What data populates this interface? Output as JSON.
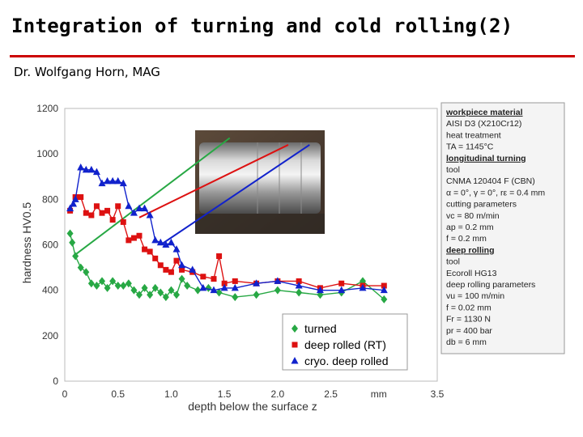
{
  "slide": {
    "title": "Integration of turning and cold rolling(2)",
    "subtitle": "Dr. Wolfgang Horn, MAG"
  },
  "colors": {
    "turned": "#27a844",
    "deep_rolled_rt": "#dd1111",
    "cryo_deep_rolled": "#1122cc",
    "title_rule": "#cc0000"
  },
  "chart_data": {
    "type": "line",
    "xlabel": "depth below the surface z",
    "ylabel": "hardness HV0.5",
    "x_unit_tick": "mm",
    "xlim": [
      0,
      3.5
    ],
    "ylim": [
      0,
      1200
    ],
    "x_ticks": [
      "0",
      "0.5",
      "1.0",
      "1.5",
      "2.0",
      "2.5",
      "mm",
      "3.5"
    ],
    "x_tick_values": [
      0,
      0.5,
      1.0,
      1.5,
      2.0,
      2.5,
      2.95,
      3.5
    ],
    "y_ticks": [
      "0",
      "200",
      "400",
      "600",
      "800",
      "1000",
      "1200"
    ],
    "y_tick_values": [
      0,
      200,
      400,
      600,
      800,
      1000,
      1200
    ],
    "grid": false,
    "legend_position": "bottom-right",
    "series": [
      {
        "name": "turned",
        "color": "#27a844",
        "marker": "diamond",
        "x": [
          0.05,
          0.07,
          0.1,
          0.15,
          0.2,
          0.25,
          0.3,
          0.35,
          0.4,
          0.45,
          0.5,
          0.55,
          0.6,
          0.65,
          0.7,
          0.75,
          0.8,
          0.85,
          0.9,
          0.95,
          1.0,
          1.05,
          1.1,
          1.15,
          1.25,
          1.35,
          1.45,
          1.6,
          1.8,
          2.0,
          2.2,
          2.4,
          2.6,
          2.8,
          3.0
        ],
        "y": [
          650,
          610,
          550,
          500,
          480,
          430,
          420,
          440,
          410,
          440,
          420,
          420,
          430,
          400,
          380,
          410,
          380,
          410,
          390,
          370,
          400,
          380,
          450,
          420,
          400,
          410,
          390,
          370,
          380,
          400,
          390,
          380,
          390,
          440,
          360
        ]
      },
      {
        "name": "deep rolled (RT)",
        "color": "#dd1111",
        "marker": "square",
        "x": [
          0.05,
          0.1,
          0.15,
          0.2,
          0.25,
          0.3,
          0.35,
          0.4,
          0.45,
          0.5,
          0.55,
          0.6,
          0.65,
          0.7,
          0.75,
          0.8,
          0.85,
          0.9,
          0.95,
          1.0,
          1.05,
          1.1,
          1.2,
          1.3,
          1.4,
          1.45,
          1.5,
          1.6,
          1.8,
          2.0,
          2.2,
          2.4,
          2.6,
          2.8,
          3.0
        ],
        "y": [
          750,
          810,
          810,
          740,
          730,
          770,
          740,
          750,
          710,
          770,
          700,
          620,
          630,
          640,
          580,
          570,
          540,
          510,
          490,
          480,
          530,
          490,
          480,
          460,
          450,
          550,
          430,
          440,
          430,
          440,
          440,
          410,
          430,
          420,
          420
        ]
      },
      {
        "name": "cryo. deep rolled",
        "color": "#1122cc",
        "marker": "triangle",
        "x": [
          0.05,
          0.08,
          0.1,
          0.15,
          0.2,
          0.25,
          0.3,
          0.35,
          0.4,
          0.45,
          0.5,
          0.55,
          0.6,
          0.65,
          0.7,
          0.75,
          0.8,
          0.85,
          0.9,
          0.95,
          1.0,
          1.05,
          1.1,
          1.2,
          1.3,
          1.4,
          1.5,
          1.6,
          1.8,
          2.0,
          2.2,
          2.4,
          2.6,
          2.8,
          3.0
        ],
        "y": [
          760,
          780,
          800,
          940,
          930,
          930,
          920,
          870,
          880,
          880,
          880,
          870,
          770,
          740,
          760,
          760,
          730,
          620,
          610,
          600,
          610,
          580,
          510,
          490,
          410,
          400,
          410,
          410,
          430,
          440,
          420,
          400,
          400,
          410,
          400
        ]
      }
    ],
    "parameters_panel": [
      {
        "text": "workpiece material",
        "head": true
      },
      {
        "text": "AISI D3 (X210Cr12)",
        "head": false
      },
      {
        "text": "heat treatment",
        "head": false
      },
      {
        "text": "TA = 1145°C",
        "head": false
      },
      {
        "text": "longitudinal turning",
        "head": true
      },
      {
        "text": "tool",
        "head": false
      },
      {
        "text": "CNMA 120404 F (CBN)",
        "head": false
      },
      {
        "text": "α = 0°, γ = 0°, rε = 0.4 mm",
        "head": false
      },
      {
        "text": "cutting parameters",
        "head": false
      },
      {
        "text": "vc      = 80 m/min",
        "head": false
      },
      {
        "text": "ap      = 0.2 mm",
        "head": false
      },
      {
        "text": "f        = 0.2 mm",
        "head": false
      },
      {
        "text": "deep rolling",
        "head": true
      },
      {
        "text": "tool",
        "head": false
      },
      {
        "text": "Ecoroll HG13",
        "head": false
      },
      {
        "text": "deep rolling parameters",
        "head": false
      },
      {
        "text": "vu      = 100 m/min",
        "head": false
      },
      {
        "text": "f        = 0.02 mm",
        "head": false
      },
      {
        "text": "Fr      = 1130 N",
        "head": false
      },
      {
        "text": "pr      = 400 bar",
        "head": false
      },
      {
        "text": "db      = 6 mm",
        "head": false
      }
    ],
    "photo": {
      "subject": "cylindrical steel workpiece photo"
    }
  }
}
